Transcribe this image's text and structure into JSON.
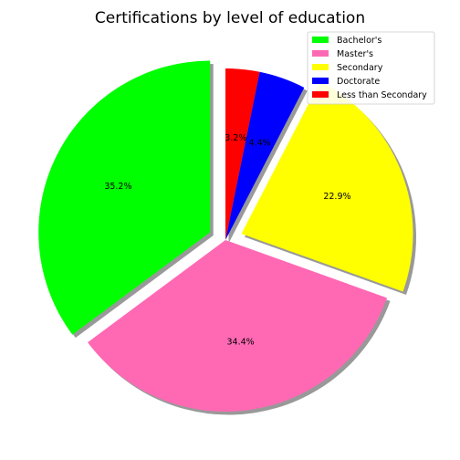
{
  "chart_data": {
    "type": "pie",
    "title": "Certifications by level of education",
    "categories": [
      "Bachelor's",
      "Master's",
      "Secondary",
      "Doctorate",
      "Less than Secondary"
    ],
    "values": [
      35.2,
      34.4,
      22.9,
      4.4,
      3.2
    ],
    "labels": [
      "35.2%",
      "34.4%",
      "22.9%",
      "4.4%",
      "3.2%"
    ],
    "colors": [
      "#00ff00",
      "#ff69b4",
      "#ffff00",
      "#0000ff",
      "#ff0000"
    ],
    "exploded": [
      true,
      false,
      true,
      false,
      false
    ],
    "start_angle_deg": 90,
    "direction": "counterclockwise",
    "shadow": true,
    "legend_position": "top-right"
  }
}
